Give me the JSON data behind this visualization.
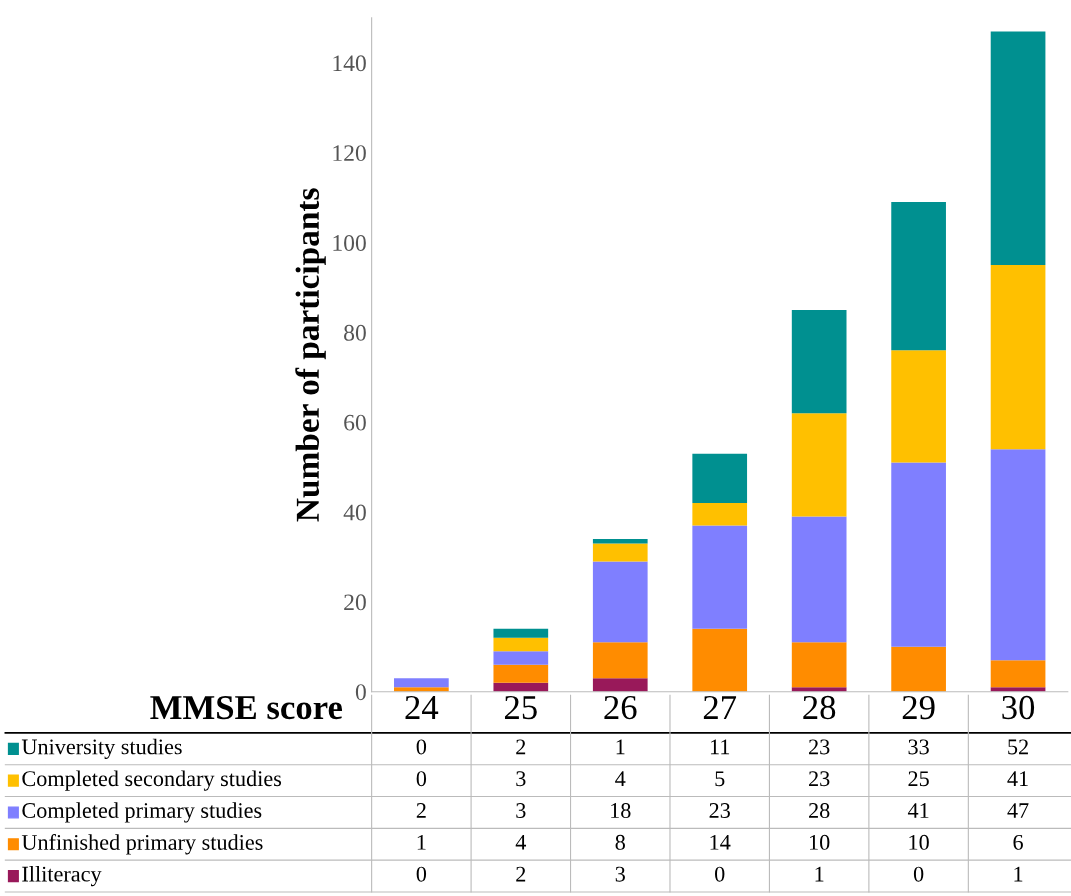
{
  "chart_data": {
    "type": "bar",
    "stacked": true,
    "xlabel": "MMSE score",
    "ylabel": "Number of participants",
    "categories": [
      "24",
      "25",
      "26",
      "27",
      "28",
      "29",
      "30"
    ],
    "series": [
      {
        "name": "Illiteracy",
        "color": "#99195a",
        "values": [
          0,
          2,
          3,
          0,
          1,
          0,
          1
        ]
      },
      {
        "name": "Unfinished primary studies",
        "color": "#ff8c00",
        "values": [
          1,
          4,
          8,
          14,
          10,
          10,
          6
        ]
      },
      {
        "name": "Completed primary studies",
        "color": "#7f7fff",
        "values": [
          2,
          3,
          18,
          23,
          28,
          41,
          47
        ]
      },
      {
        "name": "Completed secondary studies",
        "color": "#ffc000",
        "values": [
          0,
          3,
          4,
          5,
          23,
          25,
          41
        ]
      },
      {
        "name": "University studies",
        "color": "#009090",
        "values": [
          0,
          2,
          1,
          11,
          23,
          33,
          52
        ]
      }
    ],
    "ylim": [
      0,
      150
    ],
    "yticks": [
      0,
      20,
      40,
      60,
      80,
      100,
      120,
      140
    ],
    "grid": false,
    "data_labels": true,
    "legend": "bottom"
  }
}
